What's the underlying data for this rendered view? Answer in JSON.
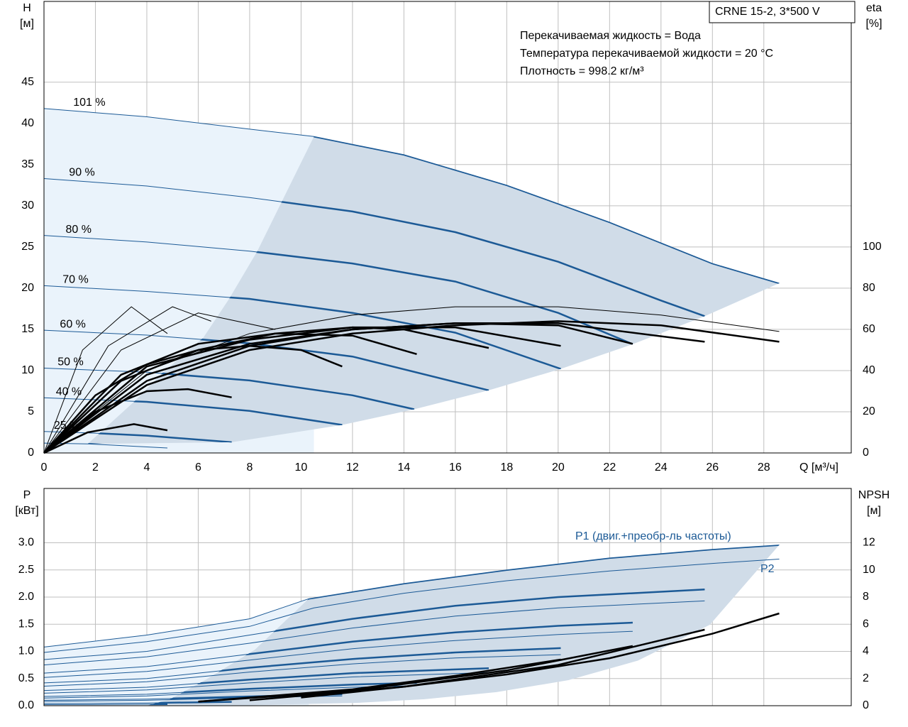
{
  "chart_data": [
    {
      "type": "line",
      "annotation": "CRNE 15-2, 3*500 V",
      "notes": [
        "Перекачиваемая жидкость = Вода",
        "Температура перекачиваемой жидкости = 20 °C",
        "Плотность = 998.2 кг/м³"
      ],
      "xlabel": "Q [м³/ч]",
      "ylabel": [
        "H",
        "[м]"
      ],
      "y2label": [
        "eta",
        "[%]"
      ],
      "xlim": [
        0,
        31.4
      ],
      "xticks": [
        0,
        2,
        4,
        6,
        8,
        10,
        12,
        14,
        16,
        18,
        20,
        22,
        24,
        26,
        28
      ],
      "ylim": [
        0,
        54.8
      ],
      "yticks": [
        0,
        5,
        10,
        15,
        20,
        25,
        30,
        35,
        40,
        45
      ],
      "y2lim": [
        0,
        219.3
      ],
      "y2ticks": [
        0,
        20,
        40,
        60,
        80,
        100
      ],
      "grid": true,
      "show_xtick_labels": true,
      "area_color": "#d0dce8",
      "light_color": "#eaf3fb",
      "operating_area": {
        "x": [
          10.5,
          14,
          18,
          22,
          26,
          28.6,
          25.7,
          22.9,
          20.1,
          17.3,
          14.4,
          11.6,
          7.3,
          1.7,
          3.5,
          4.6,
          6.2,
          7.2,
          8.3
        ],
        "values": [
          38.4,
          36.2,
          32.5,
          28,
          23,
          20.6,
          16.6,
          13.2,
          10.2,
          7.6,
          5.3,
          3.4,
          1.3,
          1.1,
          6.2,
          9.7,
          14,
          18.7,
          24.5
        ]
      },
      "series": [
        {
          "label": "101 %",
          "color": "#1c5a96",
          "style": "bold_in_area",
          "x": [
            0,
            4,
            8,
            10.5,
            14,
            18,
            22,
            26,
            28.6
          ],
          "values": [
            41.8,
            40.8,
            39.3,
            38.4,
            36.2,
            32.5,
            28,
            23,
            20.6
          ]
        },
        {
          "label": "90 %",
          "color": "#1c5a96",
          "style": "bold_in_area",
          "x": [
            0,
            4,
            8,
            12,
            16,
            20,
            24,
            25.7
          ],
          "values": [
            33.3,
            32.4,
            31,
            29.3,
            26.8,
            23.2,
            18.5,
            16.6
          ]
        },
        {
          "label": "80 %",
          "color": "#1c5a96",
          "style": "bold_in_area",
          "x": [
            0,
            4,
            8,
            12,
            16,
            20,
            22.9
          ],
          "values": [
            26.4,
            25.6,
            24.5,
            23,
            20.8,
            17,
            13.2
          ]
        },
        {
          "label": "70 %",
          "color": "#1c5a96",
          "style": "bold_in_area",
          "x": [
            0,
            4,
            8,
            12,
            16,
            20.1
          ],
          "values": [
            20.3,
            19.6,
            18.7,
            17,
            14.6,
            10.2
          ]
        },
        {
          "label": "60 %",
          "color": "#1c5a96",
          "style": "bold_in_area",
          "x": [
            0,
            4,
            8,
            12,
            17.3
          ],
          "values": [
            14.9,
            14.3,
            13.3,
            11.7,
            7.6
          ]
        },
        {
          "label": "50 %",
          "color": "#1c5a96",
          "style": "bold_in_area",
          "x": [
            0,
            4,
            8,
            12,
            14.4
          ],
          "values": [
            10.3,
            9.8,
            8.8,
            7,
            5.3
          ]
        },
        {
          "label": "40 %",
          "color": "#1c5a96",
          "style": "bold_in_area",
          "x": [
            0,
            4,
            8,
            11.6
          ],
          "values": [
            6.7,
            6.2,
            5.1,
            3.4
          ]
        },
        {
          "label": "25 %",
          "color": "#1c5a96",
          "style": "bold_in_area",
          "x": [
            0,
            2,
            4,
            7.3
          ],
          "values": [
            2.6,
            2.4,
            2.1,
            1.3
          ]
        },
        {
          "color": "#1c5a96",
          "style": "bold_in_area",
          "x": [
            0,
            1.7,
            4.8
          ],
          "values": [
            1.2,
            1.1,
            0.6
          ]
        },
        {
          "color": "#000000",
          "style": "thin",
          "axis": "y2",
          "x": [
            0,
            1.5,
            3.4,
            4.8
          ],
          "values": [
            0,
            50,
            71,
            58
          ]
        },
        {
          "color": "#000000",
          "style": "thin",
          "axis": "y2",
          "x": [
            0,
            2.5,
            5,
            6.5
          ],
          "values": [
            0,
            52,
            71,
            64
          ]
        },
        {
          "color": "#000000",
          "style": "thin",
          "axis": "y2",
          "x": [
            0,
            3,
            6,
            9
          ],
          "values": [
            0,
            50,
            68,
            60
          ]
        },
        {
          "color": "#000000",
          "style": "thin",
          "axis": "y2",
          "x": [
            0,
            4,
            8,
            12,
            16,
            20,
            24,
            28.6
          ],
          "values": [
            0,
            40,
            58,
            67,
            71,
            71,
            67,
            59
          ]
        },
        {
          "color": "#000000",
          "style": "bold",
          "axis": "y2",
          "x": [
            0,
            4,
            8,
            12,
            16,
            20,
            24,
            28.6
          ],
          "values": [
            0,
            33,
            50,
            58,
            62,
            64,
            62,
            54
          ]
        },
        {
          "color": "#000000",
          "style": "bold",
          "axis": "y2",
          "x": [
            0,
            4,
            8,
            12,
            16,
            20,
            25.7
          ],
          "values": [
            0,
            35,
            52,
            60,
            63,
            63,
            54
          ]
        },
        {
          "color": "#000000",
          "style": "bold",
          "axis": "y2",
          "x": [
            0,
            4,
            8,
            12,
            16,
            20,
            22.9
          ],
          "values": [
            0,
            38,
            53,
            60,
            63,
            62,
            53
          ]
        },
        {
          "color": "#000000",
          "style": "bold",
          "axis": "y2",
          "x": [
            0,
            4,
            8,
            12,
            16,
            20.1
          ],
          "values": [
            0,
            42,
            55,
            61,
            61,
            52
          ]
        },
        {
          "color": "#000000",
          "style": "bold",
          "axis": "y2",
          "x": [
            0,
            3,
            6,
            9,
            12,
            14,
            17.3
          ],
          "values": [
            0,
            35,
            50,
            58,
            61,
            60,
            51
          ]
        },
        {
          "color": "#000000",
          "style": "bold",
          "axis": "y2",
          "x": [
            0,
            3,
            6,
            9,
            12,
            14.5
          ],
          "values": [
            0,
            38,
            53,
            58,
            57,
            48
          ]
        },
        {
          "color": "#000000",
          "style": "bold",
          "axis": "y2",
          "x": [
            0,
            2,
            4,
            6,
            8,
            10,
            11.6
          ],
          "values": [
            0,
            28,
            43,
            50,
            52,
            50,
            42
          ]
        },
        {
          "color": "#000000",
          "style": "bold",
          "axis": "y2",
          "x": [
            0,
            2,
            4,
            5.6,
            7.3
          ],
          "values": [
            0,
            20,
            30,
            31,
            27
          ]
        },
        {
          "color": "#000000",
          "style": "bold",
          "axis": "y2",
          "x": [
            0,
            1.7,
            3.5,
            4.8
          ],
          "values": [
            0,
            10,
            14,
            11
          ]
        }
      ]
    },
    {
      "type": "line",
      "ylabel": [
        "P",
        "[кВт]"
      ],
      "y2label": [
        "NPSH",
        "[м]"
      ],
      "curve_labels": [
        {
          "text": "P1 (двиг.+преобр-ль частоты)",
          "color": "#1c5a96"
        },
        {
          "text": "P2",
          "color": "#1c5a96"
        }
      ],
      "xlim": [
        0,
        31.4
      ],
      "xticks": [
        0,
        2,
        4,
        6,
        8,
        10,
        12,
        14,
        16,
        18,
        20,
        22,
        24,
        26,
        28
      ],
      "ylim": [
        0,
        4
      ],
      "yticks": [
        {
          "value": 0,
          "label": "0.0"
        },
        0.5,
        {
          "value": 1,
          "label": "1.0"
        },
        1.5,
        {
          "value": 2,
          "label": "2.0"
        },
        2.5,
        {
          "value": 3,
          "label": "3.0"
        }
      ],
      "y2lim": [
        0,
        16
      ],
      "y2ticks": [
        0,
        2,
        4,
        6,
        8,
        10,
        12
      ],
      "grid": true,
      "show_xtick_labels": false,
      "area_color": "#d0dce8",
      "light_color": "#eaf3fb",
      "operating_area": {
        "x": [
          10.3,
          14,
          18,
          22,
          26,
          28.6,
          25.9,
          23.1,
          20.4,
          17.6,
          14.8,
          12.1,
          8,
          4,
          4.9,
          6.3,
          8.2
        ],
        "values": [
          1.97,
          2.25,
          2.5,
          2.72,
          2.88,
          2.96,
          1.49,
          0.83,
          0.47,
          0.25,
          0.12,
          0.05,
          0.01,
          0,
          0.12,
          0.48,
          1.03
        ]
      },
      "series": [
        {
          "color": "#1c5a96",
          "style": "bold_in_area",
          "x": [
            0,
            4,
            8,
            10.3,
            14,
            18,
            22,
            26,
            28.6
          ],
          "values": [
            1.08,
            1.3,
            1.6,
            1.97,
            2.25,
            2.5,
            2.72,
            2.88,
            2.96
          ]
        },
        {
          "color": "#1c5a96",
          "style": "thin",
          "x": [
            0,
            4,
            8,
            10.5,
            14,
            18,
            22,
            26,
            28.6
          ],
          "values": [
            0.98,
            1.18,
            1.46,
            1.8,
            2.07,
            2.3,
            2.48,
            2.62,
            2.7
          ]
        },
        {
          "color": "#1c5a96",
          "style": "bold_in_area",
          "x": [
            0,
            4,
            8,
            12,
            16,
            20,
            25.7
          ],
          "values": [
            0.85,
            1,
            1.3,
            1.6,
            1.84,
            2,
            2.14
          ]
        },
        {
          "color": "#1c5a96",
          "style": "thin",
          "x": [
            0,
            4,
            8,
            12,
            16,
            20,
            25.7
          ],
          "values": [
            0.75,
            0.9,
            1.15,
            1.43,
            1.65,
            1.8,
            1.93
          ]
        },
        {
          "color": "#1c5a96",
          "style": "bold_in_area",
          "x": [
            0,
            4,
            8,
            12,
            16,
            20,
            22.9
          ],
          "values": [
            0.6,
            0.72,
            0.95,
            1.18,
            1.35,
            1.47,
            1.53
          ]
        },
        {
          "color": "#1c5a96",
          "style": "thin",
          "x": [
            0,
            4,
            8,
            12,
            16,
            20,
            22.9
          ],
          "values": [
            0.52,
            0.63,
            0.84,
            1.05,
            1.2,
            1.31,
            1.37
          ]
        },
        {
          "color": "#1c5a96",
          "style": "bold_in_area",
          "x": [
            0,
            4,
            8,
            12,
            16,
            20.1
          ],
          "values": [
            0.42,
            0.5,
            0.7,
            0.86,
            0.98,
            1.06
          ]
        },
        {
          "color": "#1c5a96",
          "style": "thin",
          "x": [
            0,
            4,
            8,
            12,
            16,
            20.1
          ],
          "values": [
            0.36,
            0.44,
            0.62,
            0.77,
            0.88,
            0.94
          ]
        },
        {
          "color": "#1c5a96",
          "style": "bold_in_area",
          "x": [
            0,
            4,
            8,
            12,
            17.3
          ],
          "values": [
            0.28,
            0.34,
            0.48,
            0.6,
            0.69
          ]
        },
        {
          "color": "#1c5a96",
          "style": "thin",
          "x": [
            0,
            4,
            8,
            12,
            17.3
          ],
          "values": [
            0.23,
            0.29,
            0.42,
            0.53,
            0.61
          ]
        },
        {
          "color": "#1c5a96",
          "style": "bold_in_area",
          "x": [
            0,
            4,
            8,
            12,
            14.5
          ],
          "values": [
            0.17,
            0.21,
            0.31,
            0.39,
            0.42
          ]
        },
        {
          "color": "#1c5a96",
          "style": "thin",
          "x": [
            0,
            4,
            8,
            12,
            14.5
          ],
          "values": [
            0.14,
            0.18,
            0.27,
            0.34,
            0.37
          ]
        },
        {
          "color": "#1c5a96",
          "style": "bold_in_area",
          "x": [
            0,
            4,
            8,
            11.6
          ],
          "values": [
            0.1,
            0.12,
            0.17,
            0.21
          ]
        },
        {
          "color": "#1c5a96",
          "style": "thin",
          "x": [
            0,
            4,
            8,
            11.6
          ],
          "values": [
            0.08,
            0.1,
            0.15,
            0.18
          ]
        },
        {
          "color": "#1c5a96",
          "style": "bold_in_area",
          "x": [
            0,
            4,
            7.3
          ],
          "values": [
            0.04,
            0.05,
            0.07
          ]
        },
        {
          "color": "#1c5a96",
          "style": "bold_in_area",
          "x": [
            0,
            1.7,
            4.8
          ],
          "values": [
            0.02,
            0.02,
            0.03
          ]
        },
        {
          "color": "#000000",
          "style": "bold",
          "axis": "y2",
          "x": [
            10,
            14,
            18,
            22,
            26,
            28.6
          ],
          "values": [
            0.6,
            1.4,
            2.3,
            3.5,
            5.3,
            6.8
          ]
        },
        {
          "color": "#000000",
          "style": "bold",
          "axis": "y2",
          "x": [
            8,
            14,
            20,
            25.7
          ],
          "values": [
            0.4,
            1.4,
            3,
            5.6
          ]
        },
        {
          "color": "#000000",
          "style": "bold",
          "axis": "y2",
          "x": [
            6,
            12,
            18,
            22.9
          ],
          "values": [
            0.3,
            1.1,
            2.6,
            4.4
          ]
        },
        {
          "color": "#000000",
          "style": "bold",
          "axis": "y2",
          "x": [
            6,
            12,
            16,
            20.1
          ],
          "values": [
            0.3,
            1.2,
            2.2,
            3.4
          ]
        }
      ]
    }
  ]
}
